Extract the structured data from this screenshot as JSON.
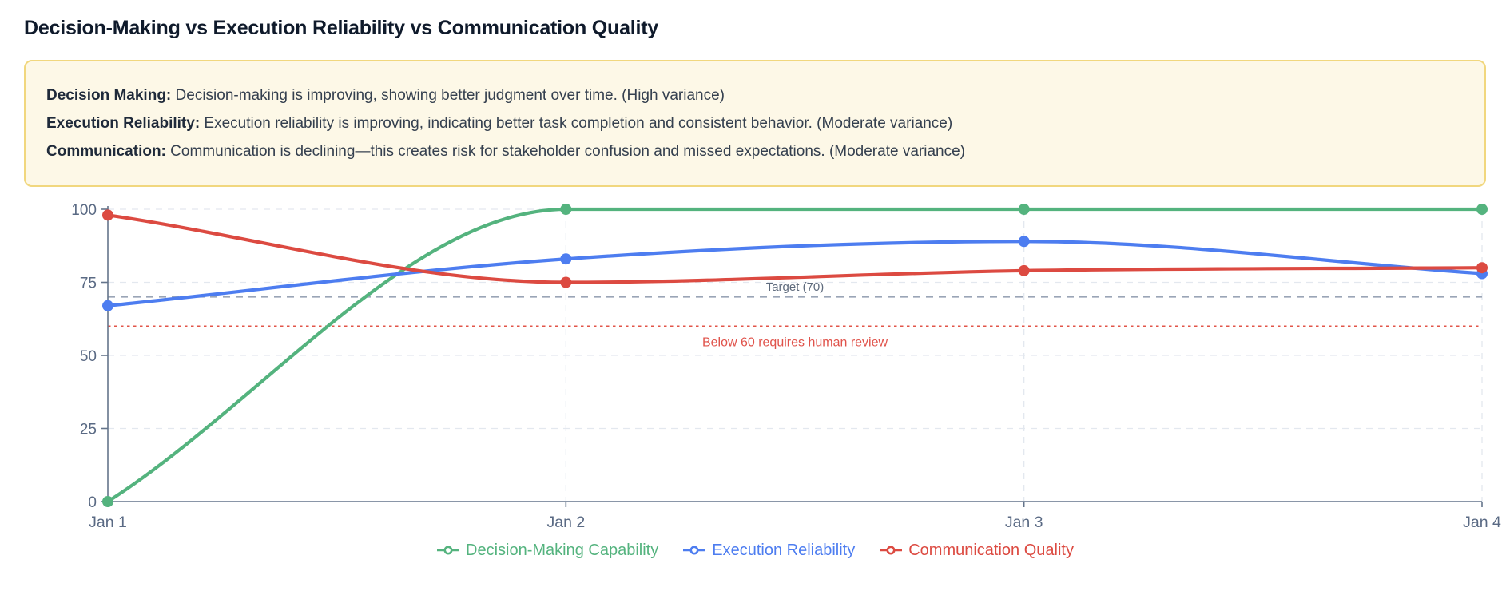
{
  "page": {
    "title": "Decision-Making vs Execution Reliability vs Communication Quality"
  },
  "summary_box": {
    "background": "#fdf8e7",
    "border_color": "#f1d77e",
    "items": [
      {
        "label": "Decision Making:",
        "text": " Decision-making is improving, showing better judgment over time. (High variance)"
      },
      {
        "label": "Execution Reliability:",
        "text": " Execution reliability is improving, indicating better task completion and consistent behavior. (Moderate variance)"
      },
      {
        "label": "Communication:",
        "text": " Communication is declining—this creates risk for stakeholder confusion and missed expectations. (Moderate variance)"
      }
    ]
  },
  "chart_data": {
    "type": "line",
    "interpolation": "monotone",
    "grid": true,
    "legend_position": "bottom",
    "x": [
      "Jan 1",
      "Jan 2",
      "Jan 3",
      "Jan 4"
    ],
    "y_ticks": [
      0,
      25,
      50,
      75,
      100
    ],
    "ylim": [
      0,
      100
    ],
    "series": [
      {
        "name": "Decision-Making Capability",
        "color": "#54b37e",
        "values": [
          0,
          100,
          100,
          100
        ]
      },
      {
        "name": "Execution Reliability",
        "color": "#4d7df0",
        "values": [
          67,
          83,
          89,
          78
        ]
      },
      {
        "name": "Communication Quality",
        "color": "#dc4a41",
        "values": [
          98,
          75,
          79,
          80
        ]
      }
    ],
    "reference_lines": [
      {
        "label": "Target (70)",
        "value": 70,
        "style": "dashed",
        "color": "#9aa5b6",
        "label_color": "#5f6b7d"
      },
      {
        "label": "Below 60 requires human review",
        "value": 60,
        "style": "dotted",
        "color": "#e25549",
        "label_color": "#e0534b"
      }
    ],
    "axis_color": "#64748b",
    "grid_color": "#e3e8ef",
    "tick_label_color": "#5a6a84"
  }
}
